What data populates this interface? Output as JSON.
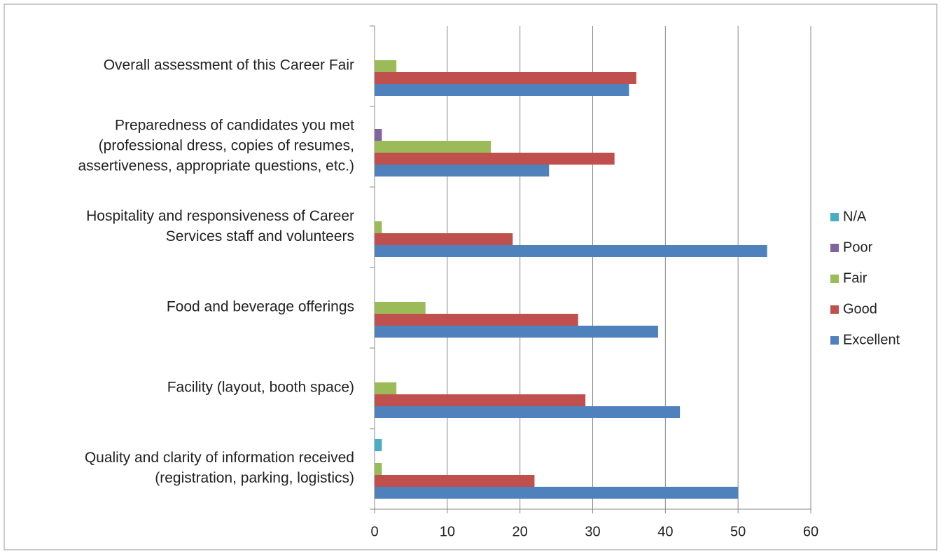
{
  "chart_data": {
    "type": "barh",
    "categories": [
      "Overall assessment of this Career Fair",
      "Preparedness of candidates you met\n(professional dress, copies of resumes,\nassertiveness, appropriate questions, etc.)",
      "Hospitality and responsiveness of Career\nServices staff and volunteers",
      "Food and beverage offerings",
      "Facility (layout, booth space)",
      "Quality and clarity of information received\n(registration, parking, logistics)"
    ],
    "series": [
      {
        "name": "N/A",
        "color": "#4bacc6",
        "values": [
          0,
          0,
          0,
          0,
          0,
          1
        ]
      },
      {
        "name": "Poor",
        "color": "#8064a2",
        "values": [
          0,
          1,
          0,
          0,
          0,
          0
        ]
      },
      {
        "name": "Fair",
        "color": "#9bbb59",
        "values": [
          3,
          16,
          1,
          7,
          3,
          1
        ]
      },
      {
        "name": "Good",
        "color": "#c0504d",
        "values": [
          36,
          33,
          19,
          28,
          29,
          22
        ]
      },
      {
        "name": "Excellent",
        "color": "#4f81bd",
        "values": [
          35,
          24,
          54,
          39,
          42,
          50
        ]
      }
    ],
    "xlim": [
      0,
      60
    ],
    "xticks": [
      0,
      10,
      20,
      30,
      40,
      50,
      60
    ],
    "grid": true,
    "legend": "right"
  }
}
